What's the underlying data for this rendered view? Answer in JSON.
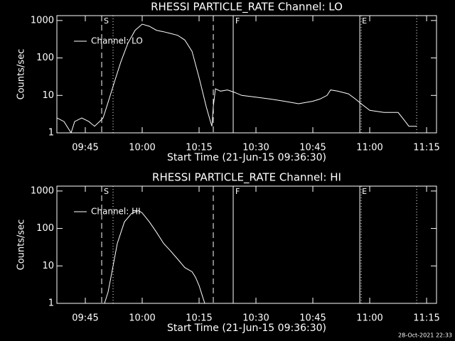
{
  "chart_data": [
    {
      "type": "line",
      "title": "RHESSI PARTICLE_RATE Channel: LO",
      "xlabel": "Start Time (21-Jun-15 09:36:30)",
      "ylabel": "Counts/sec",
      "x": [
        60,
        173,
        285,
        341,
        454,
        566,
        656,
        735,
        791,
        848,
        960,
        1073,
        1185,
        1298,
        1410,
        1523,
        1635,
        1748,
        1860,
        1973,
        2085,
        2198,
        2310,
        2423,
        2490,
        2513,
        2535,
        2569,
        2648,
        2760,
        2873,
        2985,
        3210,
        3435,
        3660,
        3885,
        4110,
        4223,
        4335,
        4391,
        4504,
        4673,
        4785,
        4875,
        5010,
        5235,
        5460,
        5573,
        5629,
        5753
      ],
      "series": [
        {
          "name": "Channel: LO",
          "color": "#ffffff",
          "values": [
            2.5,
            2,
            1,
            2,
            2.5,
            2,
            1.5,
            2,
            2.5,
            5,
            20,
            80,
            250,
            550,
            800,
            700,
            550,
            500,
            450,
            400,
            300,
            150,
            30,
            5,
            2,
            1.5,
            5,
            15,
            13,
            14,
            12,
            10,
            9,
            8,
            7,
            6,
            7,
            8,
            10,
            14,
            13,
            11,
            8,
            6,
            4,
            3.5,
            3.5,
            2,
            1.5,
            1.5
          ]
        }
      ],
      "xlim": [
        60,
        6067
      ],
      "ylim": [
        1,
        1350
      ],
      "log_y": true,
      "legend": "top-left",
      "xticks": [
        {
          "value": 510,
          "label": "09:45"
        },
        {
          "value": 1410,
          "label": "10:00"
        },
        {
          "value": 2310,
          "label": "10:15"
        },
        {
          "value": 3210,
          "label": "10:30"
        },
        {
          "value": 4110,
          "label": "10:45"
        },
        {
          "value": 5010,
          "label": "11:00"
        },
        {
          "value": 5910,
          "label": "11:15"
        }
      ],
      "yticks": [
        1,
        10,
        100,
        1000
      ],
      "markers": [
        {
          "x": 769,
          "style": "dashed",
          "label": "S"
        },
        {
          "x": 949,
          "style": "dotted"
        },
        {
          "x": 2535,
          "style": "dashed"
        },
        {
          "x": 2850,
          "style": "solid",
          "label": "F"
        },
        {
          "x": 4853,
          "style": "solid",
          "label": "E"
        },
        {
          "x": 4875,
          "style": "dotted"
        },
        {
          "x": 5753,
          "style": "dotted"
        }
      ]
    },
    {
      "type": "line",
      "title": "RHESSI PARTICLE_RATE Channel: HI",
      "xlabel": "Start Time (21-Jun-15 09:36:30)",
      "ylabel": "Counts/sec",
      "x": [
        814,
        870,
        938,
        1016,
        1129,
        1241,
        1354,
        1410,
        1523,
        1635,
        1748,
        1860,
        1973,
        2085,
        2198,
        2254,
        2310,
        2366,
        2400
      ],
      "series": [
        {
          "name": "Channel: HI",
          "color": "#ffffff",
          "values": [
            1,
            2,
            8,
            40,
            150,
            250,
            300,
            260,
            150,
            80,
            40,
            25,
            15,
            9,
            7,
            5,
            3,
            1.5,
            1
          ]
        }
      ],
      "xlim": [
        60,
        6067
      ],
      "ylim": [
        1,
        1350
      ],
      "log_y": true,
      "legend": "top-left",
      "xticks": [
        {
          "value": 510,
          "label": "09:45"
        },
        {
          "value": 1410,
          "label": "10:00"
        },
        {
          "value": 2310,
          "label": "10:15"
        },
        {
          "value": 3210,
          "label": "10:30"
        },
        {
          "value": 4110,
          "label": "10:45"
        },
        {
          "value": 5010,
          "label": "11:00"
        },
        {
          "value": 5910,
          "label": "11:15"
        }
      ],
      "yticks": [
        1,
        10,
        100,
        1000
      ],
      "markers": [
        {
          "x": 769,
          "style": "dashed",
          "label": "S"
        },
        {
          "x": 949,
          "style": "dotted"
        },
        {
          "x": 2535,
          "style": "dashed"
        },
        {
          "x": 2850,
          "style": "solid",
          "label": "F"
        },
        {
          "x": 4853,
          "style": "solid",
          "label": "E"
        },
        {
          "x": 4875,
          "style": "dotted"
        },
        {
          "x": 5753,
          "style": "dotted"
        }
      ]
    }
  ],
  "footer": "28-Oct-2021 22:33"
}
